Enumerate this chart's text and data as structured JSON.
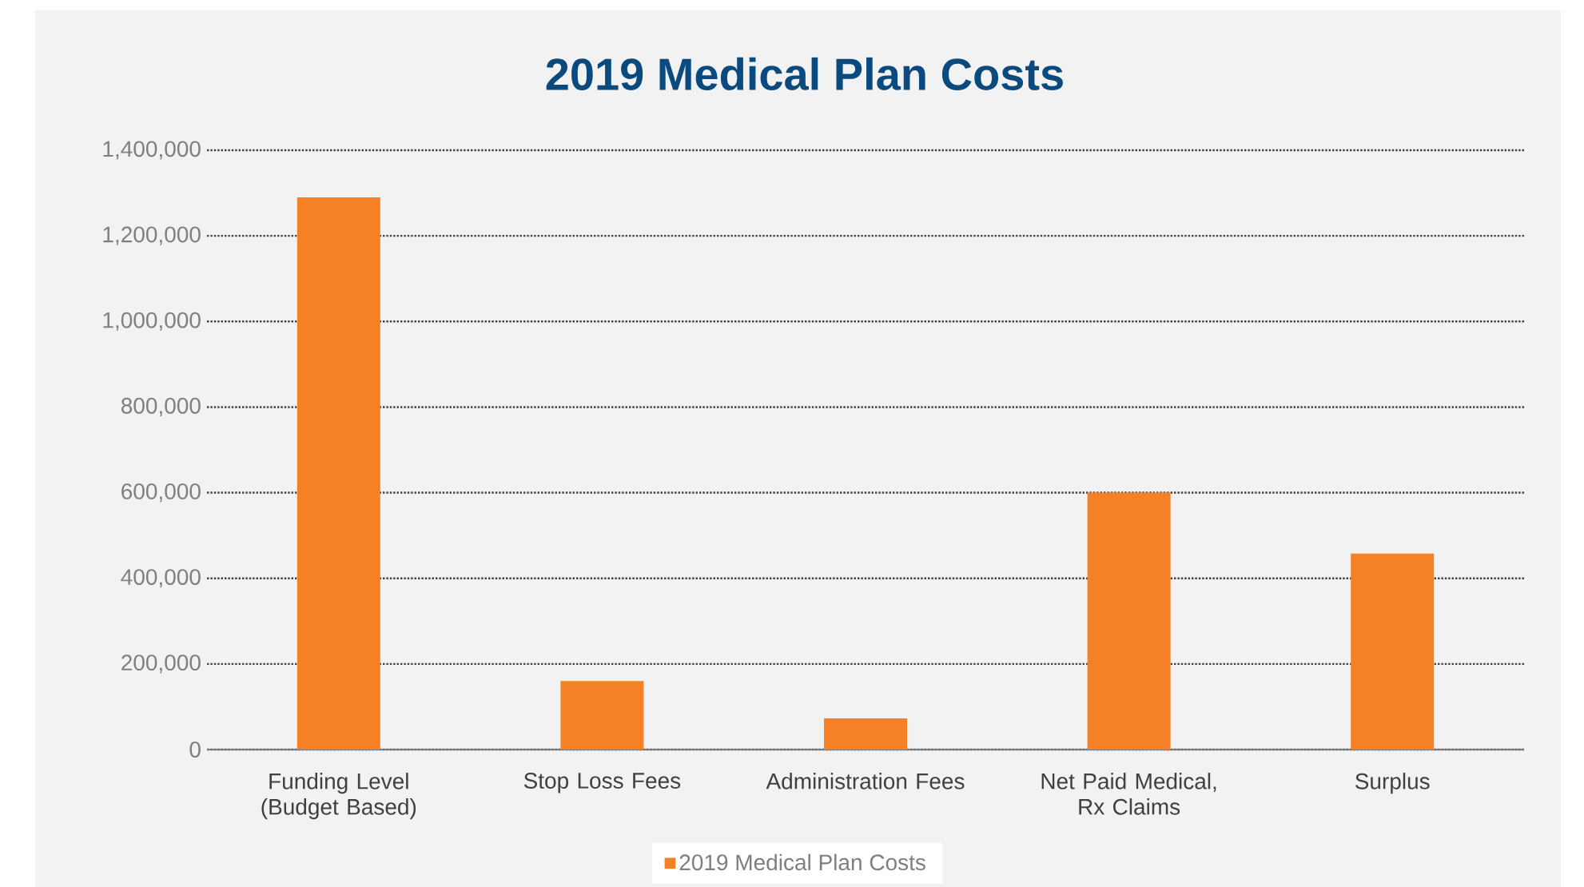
{
  "chart_data": {
    "type": "bar",
    "title": "2019 Medical Plan Costs",
    "categories": [
      "Funding Level (Budget Based)",
      "Stop Loss Fees",
      "Administration Fees",
      "Net Paid Medical, Rx Claims",
      "Surplus"
    ],
    "series": [
      {
        "name": "2019 Medical Plan Costs",
        "color": "#f58025",
        "values": [
          1290000,
          160000,
          73000,
          600000,
          458000
        ]
      }
    ],
    "ylim": [
      0,
      1400000
    ],
    "yticks": [
      {
        "value": 0,
        "label": "0"
      },
      {
        "value": 200000,
        "label": "200,000"
      },
      {
        "value": 400000,
        "label": "400,000"
      },
      {
        "value": 600000,
        "label": "600,000"
      },
      {
        "value": 800000,
        "label": "800,000"
      },
      {
        "value": 1000000,
        "label": "1,000,000"
      },
      {
        "value": 1200000,
        "label": "1,200,000"
      },
      {
        "value": 1400000,
        "label": "1,400,000"
      }
    ],
    "grid": "y",
    "legend": "bottom"
  }
}
